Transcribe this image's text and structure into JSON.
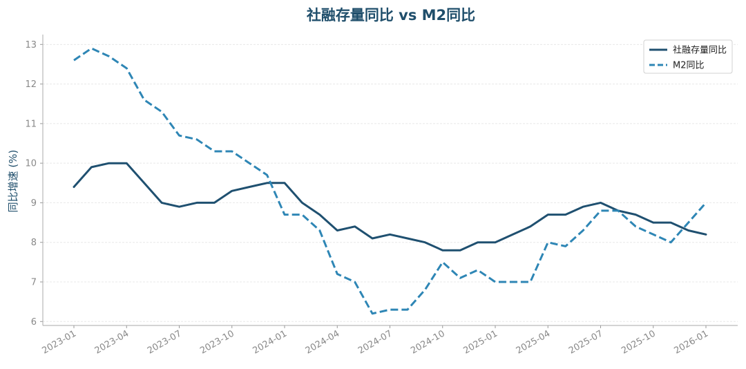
{
  "chart_data": {
    "type": "line",
    "title": "社融存量同比 vs M2同比",
    "xlabel": "",
    "ylabel": "同比增速 (%)",
    "ylim": [
      5.9,
      13.25
    ],
    "yticks": [
      6,
      7,
      8,
      9,
      10,
      11,
      12,
      13
    ],
    "x": [
      "2023-01",
      "2023-02",
      "2023-03",
      "2023-04",
      "2023-05",
      "2023-06",
      "2023-07",
      "2023-08",
      "2023-09",
      "2023-10",
      "2023-11",
      "2023-12",
      "2024-01",
      "2024-02",
      "2024-03",
      "2024-04",
      "2024-05",
      "2024-06",
      "2024-07",
      "2024-08",
      "2024-09",
      "2024-10",
      "2024-11",
      "2024-12",
      "2025-01",
      "2025-02",
      "2025-03",
      "2025-04",
      "2025-05",
      "2025-06",
      "2025-07",
      "2025-08",
      "2025-09",
      "2025-10",
      "2025-11",
      "2025-12",
      "2026-01"
    ],
    "xticks": [
      "2023-01",
      "2023-04",
      "2023-07",
      "2023-10",
      "2024-01",
      "2024-04",
      "2024-07",
      "2024-10",
      "2025-01",
      "2025-04",
      "2025-07",
      "2025-10",
      "2026-01"
    ],
    "grid": true,
    "legend_position": "top-right",
    "series": [
      {
        "name": "社融存量同比",
        "style": "solid",
        "color": "#1f5070",
        "values": [
          9.4,
          9.9,
          10.0,
          10.0,
          9.5,
          9.0,
          8.9,
          9.0,
          9.0,
          9.3,
          9.4,
          9.5,
          9.5,
          9.0,
          8.7,
          8.3,
          8.4,
          8.1,
          8.2,
          8.1,
          8.0,
          7.8,
          7.8,
          8.0,
          8.0,
          8.2,
          8.4,
          8.7,
          8.7,
          8.9,
          9.0,
          8.8,
          8.7,
          8.5,
          8.5,
          8.3,
          8.2
        ]
      },
      {
        "name": "M2同比",
        "style": "dashed",
        "color": "#2e86b5",
        "values": [
          12.6,
          12.9,
          12.7,
          12.4,
          11.6,
          11.3,
          10.7,
          10.6,
          10.3,
          10.3,
          10.0,
          9.7,
          8.7,
          8.7,
          8.3,
          7.2,
          7.0,
          6.2,
          6.3,
          6.3,
          6.8,
          7.5,
          7.1,
          7.3,
          7.0,
          7.0,
          7.0,
          8.0,
          7.9,
          8.3,
          8.8,
          8.8,
          8.4,
          8.2,
          8.0,
          8.5,
          9.0
        ]
      }
    ]
  }
}
